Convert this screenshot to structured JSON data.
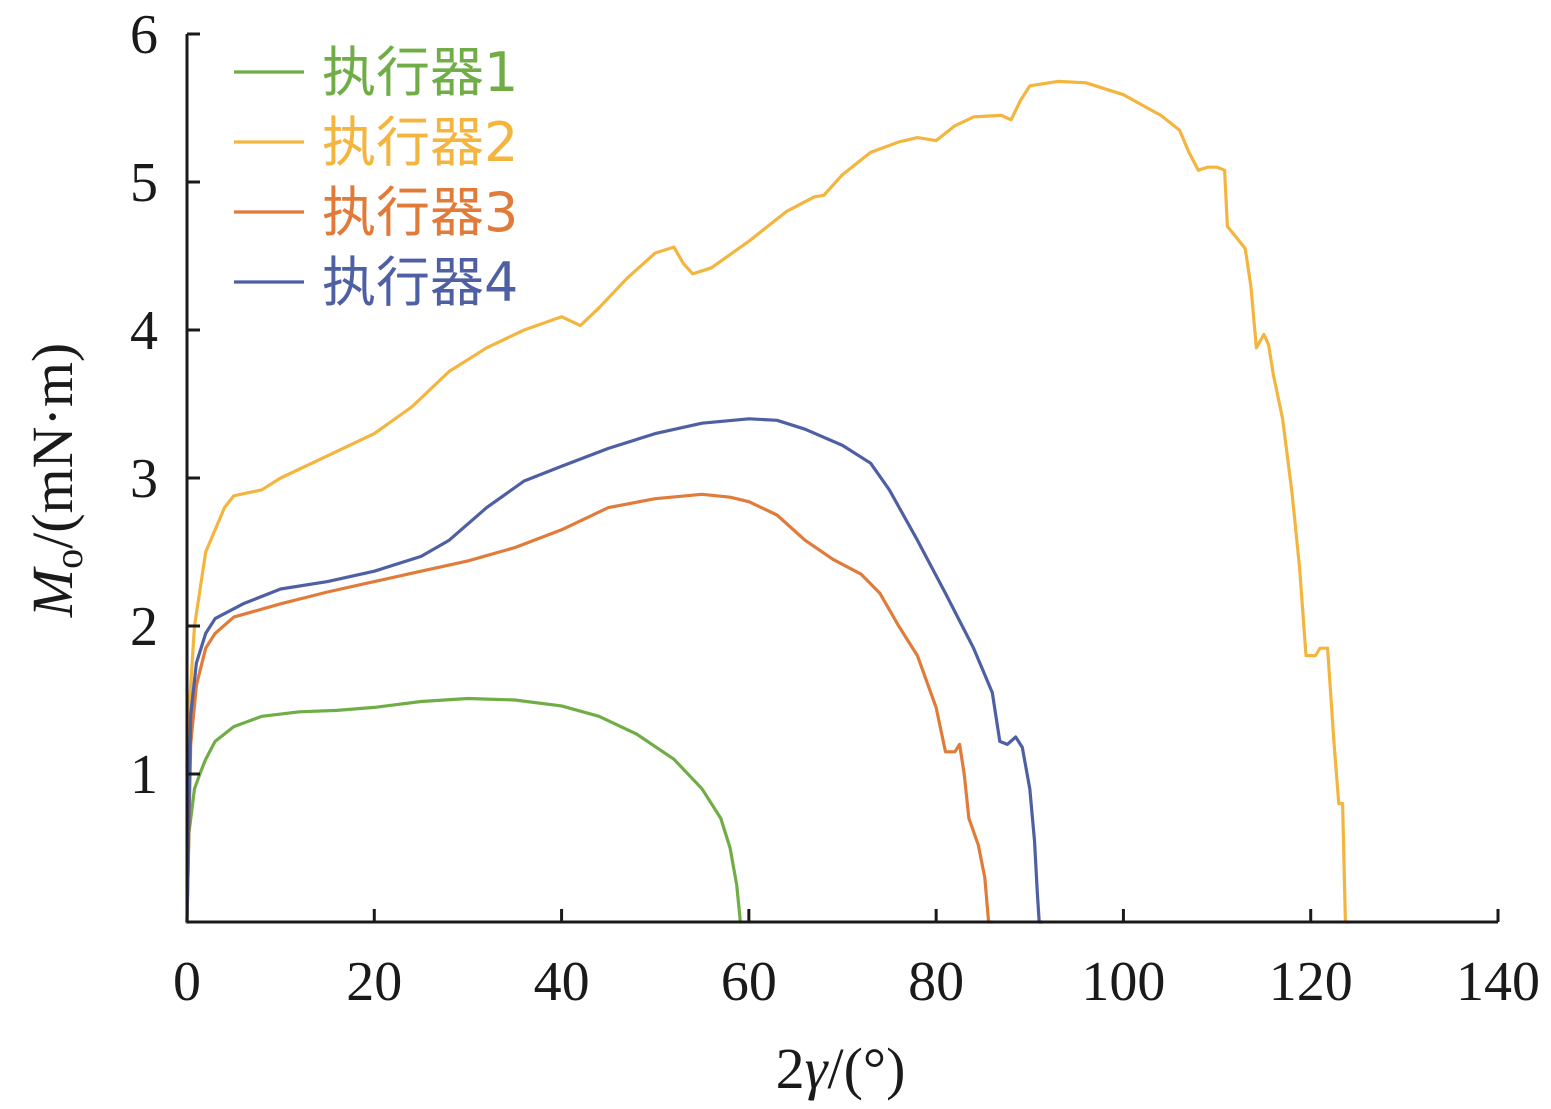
{
  "chart_data": {
    "type": "line",
    "xlabel": "2γ/(°)",
    "ylabel": "Mo/(mN·m)",
    "ylabel_parts": {
      "symbol": "M",
      "subscript": "o",
      "unit": "/(mN·m)"
    },
    "xlabel_parts": {
      "prefix": "2",
      "symbol": "γ",
      "unit": "/(°)"
    },
    "xlim": [
      0,
      140
    ],
    "ylim": [
      0,
      6
    ],
    "x_ticks": [
      "0",
      "20",
      "40",
      "60",
      "80",
      "100",
      "120",
      "140"
    ],
    "y_ticks": [
      "1",
      "2",
      "3",
      "4",
      "5",
      "6"
    ],
    "grid": false,
    "legend_position": "top-left",
    "series": [
      {
        "name": "执行器1",
        "color": "#70ad47",
        "points": [
          [
            0,
            0
          ],
          [
            0.2,
            0.6
          ],
          [
            0.8,
            0.9
          ],
          [
            1.5,
            1.02
          ],
          [
            2,
            1.1
          ],
          [
            3,
            1.22
          ],
          [
            5,
            1.32
          ],
          [
            8,
            1.39
          ],
          [
            12,
            1.42
          ],
          [
            16,
            1.43
          ],
          [
            20,
            1.45
          ],
          [
            25,
            1.49
          ],
          [
            30,
            1.51
          ],
          [
            35,
            1.5
          ],
          [
            40,
            1.46
          ],
          [
            44,
            1.39
          ],
          [
            48,
            1.27
          ],
          [
            52,
            1.1
          ],
          [
            55,
            0.9
          ],
          [
            57,
            0.7
          ],
          [
            58,
            0.5
          ],
          [
            58.7,
            0.25
          ],
          [
            59.1,
            0
          ]
        ]
      },
      {
        "name": "执行器2",
        "color": "#f4b53f",
        "points": [
          [
            0,
            0
          ],
          [
            0.3,
            1.5
          ],
          [
            0.8,
            2.0
          ],
          [
            2,
            2.5
          ],
          [
            4,
            2.8
          ],
          [
            5,
            2.88
          ],
          [
            8,
            2.92
          ],
          [
            10,
            3.0
          ],
          [
            15,
            3.15
          ],
          [
            20,
            3.3
          ],
          [
            24,
            3.48
          ],
          [
            28,
            3.72
          ],
          [
            32,
            3.88
          ],
          [
            36,
            4.0
          ],
          [
            40,
            4.09
          ],
          [
            42,
            4.03
          ],
          [
            44,
            4.15
          ],
          [
            47,
            4.35
          ],
          [
            50,
            4.52
          ],
          [
            52,
            4.56
          ],
          [
            53,
            4.45
          ],
          [
            54,
            4.38
          ],
          [
            56,
            4.42
          ],
          [
            60,
            4.6
          ],
          [
            64,
            4.8
          ],
          [
            67,
            4.9
          ],
          [
            68,
            4.91
          ],
          [
            70,
            5.05
          ],
          [
            73,
            5.2
          ],
          [
            76,
            5.27
          ],
          [
            78,
            5.3
          ],
          [
            80,
            5.28
          ],
          [
            82,
            5.38
          ],
          [
            84,
            5.44
          ],
          [
            87,
            5.45
          ],
          [
            88,
            5.42
          ],
          [
            89,
            5.55
          ],
          [
            90,
            5.65
          ],
          [
            93,
            5.68
          ],
          [
            96,
            5.67
          ],
          [
            100,
            5.59
          ],
          [
            104,
            5.45
          ],
          [
            106,
            5.35
          ],
          [
            107,
            5.2
          ],
          [
            108,
            5.08
          ],
          [
            109,
            5.1
          ],
          [
            110,
            5.1
          ],
          [
            110.8,
            5.08
          ],
          [
            111.1,
            4.7
          ],
          [
            112,
            4.63
          ],
          [
            113,
            4.55
          ],
          [
            113.6,
            4.3
          ],
          [
            114.2,
            3.88
          ],
          [
            115,
            3.97
          ],
          [
            115.5,
            3.9
          ],
          [
            116,
            3.7
          ],
          [
            117,
            3.4
          ],
          [
            118,
            2.9
          ],
          [
            118.8,
            2.4
          ],
          [
            119.5,
            1.8
          ],
          [
            120.5,
            1.8
          ],
          [
            121,
            1.85
          ],
          [
            121.8,
            1.85
          ],
          [
            122.5,
            1.2
          ],
          [
            123,
            0.8
          ],
          [
            123.4,
            0.8
          ],
          [
            123.7,
            0
          ],
          [
            124,
            0
          ]
        ]
      },
      {
        "name": "执行器3",
        "color": "#e07b39",
        "points": [
          [
            0,
            0
          ],
          [
            0.4,
            1.2
          ],
          [
            1,
            1.6
          ],
          [
            2,
            1.85
          ],
          [
            3,
            1.95
          ],
          [
            5,
            2.06
          ],
          [
            10,
            2.15
          ],
          [
            15,
            2.23
          ],
          [
            20,
            2.3
          ],
          [
            25,
            2.37
          ],
          [
            30,
            2.44
          ],
          [
            35,
            2.53
          ],
          [
            40,
            2.65
          ],
          [
            45,
            2.8
          ],
          [
            50,
            2.86
          ],
          [
            55,
            2.89
          ],
          [
            58,
            2.87
          ],
          [
            60,
            2.84
          ],
          [
            63,
            2.75
          ],
          [
            66,
            2.58
          ],
          [
            69,
            2.45
          ],
          [
            72,
            2.35
          ],
          [
            74,
            2.22
          ],
          [
            76,
            2.0
          ],
          [
            78,
            1.8
          ],
          [
            80,
            1.45
          ],
          [
            81,
            1.15
          ],
          [
            82,
            1.15
          ],
          [
            82.5,
            1.2
          ],
          [
            83,
            1.0
          ],
          [
            83.5,
            0.7
          ],
          [
            84.5,
            0.52
          ],
          [
            85.2,
            0.3
          ],
          [
            85.6,
            0
          ],
          [
            86,
            0
          ]
        ]
      },
      {
        "name": "执行器4",
        "color": "#4e5fa3",
        "points": [
          [
            0,
            0
          ],
          [
            0.4,
            1.4
          ],
          [
            1,
            1.75
          ],
          [
            2,
            1.95
          ],
          [
            3,
            2.05
          ],
          [
            6,
            2.15
          ],
          [
            10,
            2.25
          ],
          [
            15,
            2.3
          ],
          [
            20,
            2.37
          ],
          [
            25,
            2.47
          ],
          [
            28,
            2.58
          ],
          [
            32,
            2.8
          ],
          [
            36,
            2.98
          ],
          [
            40,
            3.08
          ],
          [
            45,
            3.2
          ],
          [
            50,
            3.3
          ],
          [
            55,
            3.37
          ],
          [
            60,
            3.4
          ],
          [
            63,
            3.39
          ],
          [
            66,
            3.33
          ],
          [
            70,
            3.22
          ],
          [
            73,
            3.1
          ],
          [
            75,
            2.92
          ],
          [
            78,
            2.58
          ],
          [
            81,
            2.22
          ],
          [
            84,
            1.85
          ],
          [
            86,
            1.55
          ],
          [
            86.8,
            1.22
          ],
          [
            87.6,
            1.2
          ],
          [
            88.5,
            1.25
          ],
          [
            89.2,
            1.18
          ],
          [
            90,
            0.9
          ],
          [
            90.5,
            0.55
          ],
          [
            90.8,
            0.2
          ],
          [
            91,
            0
          ],
          [
            91.3,
            0
          ]
        ]
      }
    ]
  }
}
